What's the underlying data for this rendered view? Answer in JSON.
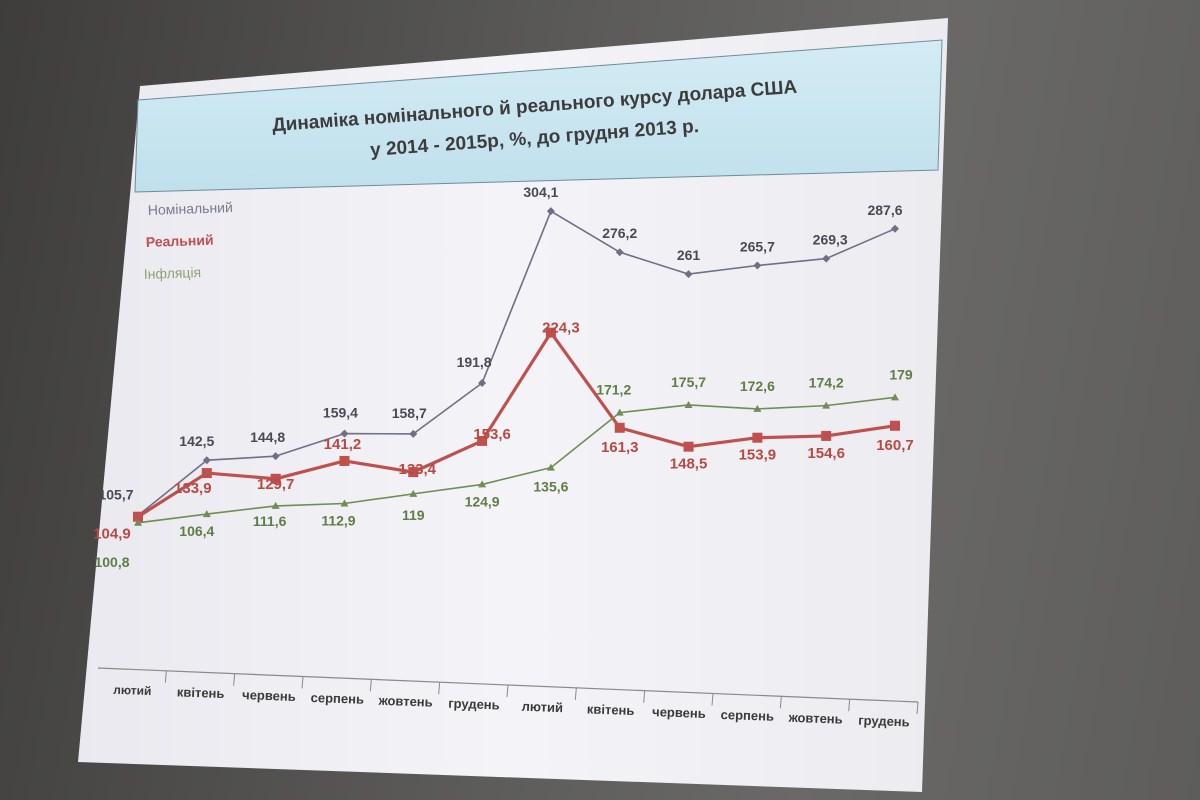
{
  "chart_data": {
    "type": "line",
    "title_line1": "Динаміка номінального й реального курсу долара США",
    "title_line2": "у 2014 - 2015р, %, до грудня 2013 р.",
    "categories": [
      "лютий",
      "квітень",
      "червень",
      "серпень",
      "жовтень",
      "грудень",
      "лютий",
      "квітень",
      "червень",
      "серпень",
      "жовтень",
      "грудень"
    ],
    "series": [
      {
        "name": "Номінальний",
        "color": "#6f6f86",
        "values": [
          105.7,
          142.5,
          144.8,
          159.4,
          158.7,
          191.8,
          304.1,
          276.2,
          261,
          265.7,
          269.3,
          287.6
        ],
        "labels": [
          "105,7",
          "142,5",
          "144,8",
          "159,4",
          "158,7",
          "191,8",
          "304,1",
          "276,2",
          "261",
          "265,7",
          "269,3",
          "287,6"
        ]
      },
      {
        "name": "Реальний",
        "color": "#c0504d",
        "values": [
          104.9,
          133.9,
          129.7,
          141.2,
          133.4,
          153.6,
          224.3,
          161.3,
          148.5,
          153.9,
          154.6,
          160.7
        ],
        "labels": [
          "104,9",
          "133,9",
          "129,7",
          "141,2",
          "133,4",
          "153,6",
          "224,3",
          "161,3",
          "148,5",
          "153,9",
          "154,6",
          "160,7"
        ]
      },
      {
        "name": "Інфляція",
        "color": "#6e8e55",
        "values": [
          100.8,
          106.4,
          111.6,
          112.9,
          119,
          124.9,
          135.6,
          171.2,
          175.7,
          172.6,
          174.2,
          179
        ],
        "labels": [
          "100,8",
          "106,4",
          "111,6",
          "112,9",
          "119",
          "124,9",
          "135,6",
          "171,2",
          "175,7",
          "172,6",
          "174,2",
          "179"
        ]
      }
    ],
    "grid": false,
    "legend_position": "top-left"
  }
}
